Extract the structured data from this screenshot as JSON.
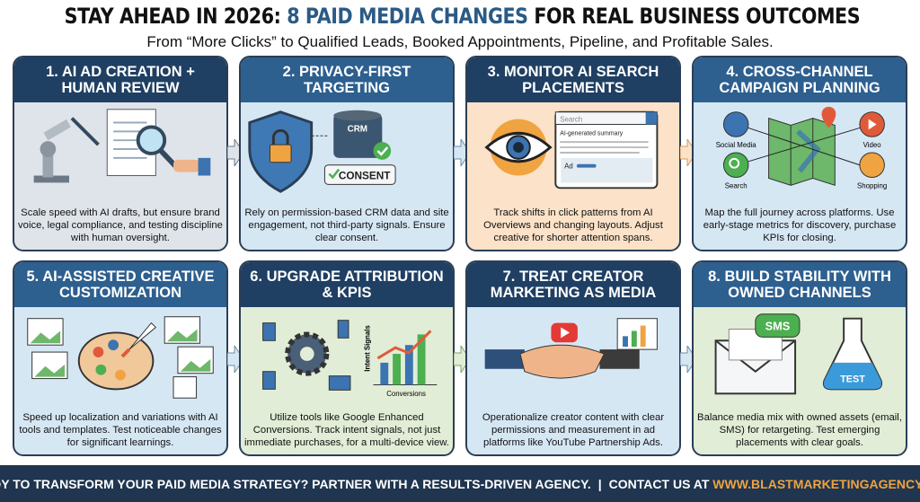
{
  "header": {
    "title_part1": "STAY AHEAD IN 2026:",
    "title_part2": "8 PAID MEDIA CHANGES",
    "title_part3": "FOR REAL BUSINESS OUTCOMES",
    "subtitle": "From “More Clicks” to Qualified Leads, Booked Appointments, Pipeline, and Profitable Sales."
  },
  "colors": {
    "navy": "#1f3f63",
    "blue": "#2d5f8f",
    "accent": "#f0a341",
    "footer": "#1f3550"
  },
  "panels": [
    {
      "title": "1. AI AD CREATION + HUMAN REVIEW",
      "text": "Scale speed with AI drafts, but ensure brand voice, legal compliance, and testing discipline with human oversight.",
      "icons": [
        "robot-arm-pen-icon",
        "document-icon",
        "magnifier-hand-icon"
      ]
    },
    {
      "title": "2. PRIVACY-FIRST TARGETING",
      "text": "Rely on permission-based CRM data and site engagement, not third-party signals. Ensure clear consent.",
      "labels": {
        "crm": "CRM",
        "consent": "CONSENT"
      },
      "icons": [
        "shield-lock-icon",
        "database-icon",
        "checkmark-icon"
      ]
    },
    {
      "title": "3. MONITOR AI SEARCH PLACEMENTS",
      "text": "Track shifts in click patterns from AI Overviews and changing layouts. Adjust creative for shorter attention spans.",
      "labels": {
        "search": "Search",
        "summary": "AI-generated summary",
        "ad": "Ad"
      },
      "icons": [
        "eye-icon",
        "search-results-icon"
      ]
    },
    {
      "title": "4. CROSS-CHANNEL CAMPAIGN PLANNING",
      "text": "Map the full journey across platforms. Use early-stage metrics for discovery, purchase KPIs for closing.",
      "labels": {
        "social": "Social Media",
        "video": "Video",
        "search": "Search",
        "shopping": "Shopping"
      },
      "icons": [
        "map-icon",
        "people-icon",
        "play-icon",
        "search-icon",
        "cart-icon"
      ]
    },
    {
      "title": "5. AI-ASSISTED CREATIVE CUSTOMIZATION",
      "text": "Speed up localization and variations with AI tools and templates. Test noticeable changes for significant learnings.",
      "icons": [
        "image-icon",
        "palette-icon",
        "rocket-icon",
        "broadcast-icon"
      ]
    },
    {
      "title": "6. UPGRADE ATTRIBUTION & KPIS",
      "text": "Utilize tools like Google Enhanced Conversions. Track intent signals, not just immediate purchases, for a multi-device view.",
      "labels": {
        "intent": "Intent Signals",
        "conversions": "Conversions"
      },
      "icons": [
        "gear-icon",
        "devices-icon",
        "growth-chart-icon"
      ]
    },
    {
      "title": "7. TREAT CREATOR MARKETING AS MEDIA",
      "text": "Operationalize creator content with clear permissions and measurement in ad platforms like YouTube Partnership Ads.",
      "icons": [
        "handshake-icon",
        "play-icon",
        "bar-chart-icon"
      ]
    },
    {
      "title": "8. BUILD STABILITY WITH OWNED CHANNELS",
      "text": "Balance media mix with owned assets (email, SMS) for retargeting. Test emerging placements with clear goals.",
      "labels": {
        "sms": "SMS",
        "test": "TEST"
      },
      "icons": [
        "envelope-icon",
        "sms-bubble-icon",
        "flask-icon"
      ]
    }
  ],
  "footer": {
    "cta": "READY TO TRANSFORM YOUR PAID MEDIA STRATEGY? PARTNER WITH A RESULTS-DRIVEN AGENCY.",
    "sep": "|",
    "contact": "CONTACT US AT",
    "url": "WWW.BLASTMARKETINGAGENCY.COM"
  }
}
